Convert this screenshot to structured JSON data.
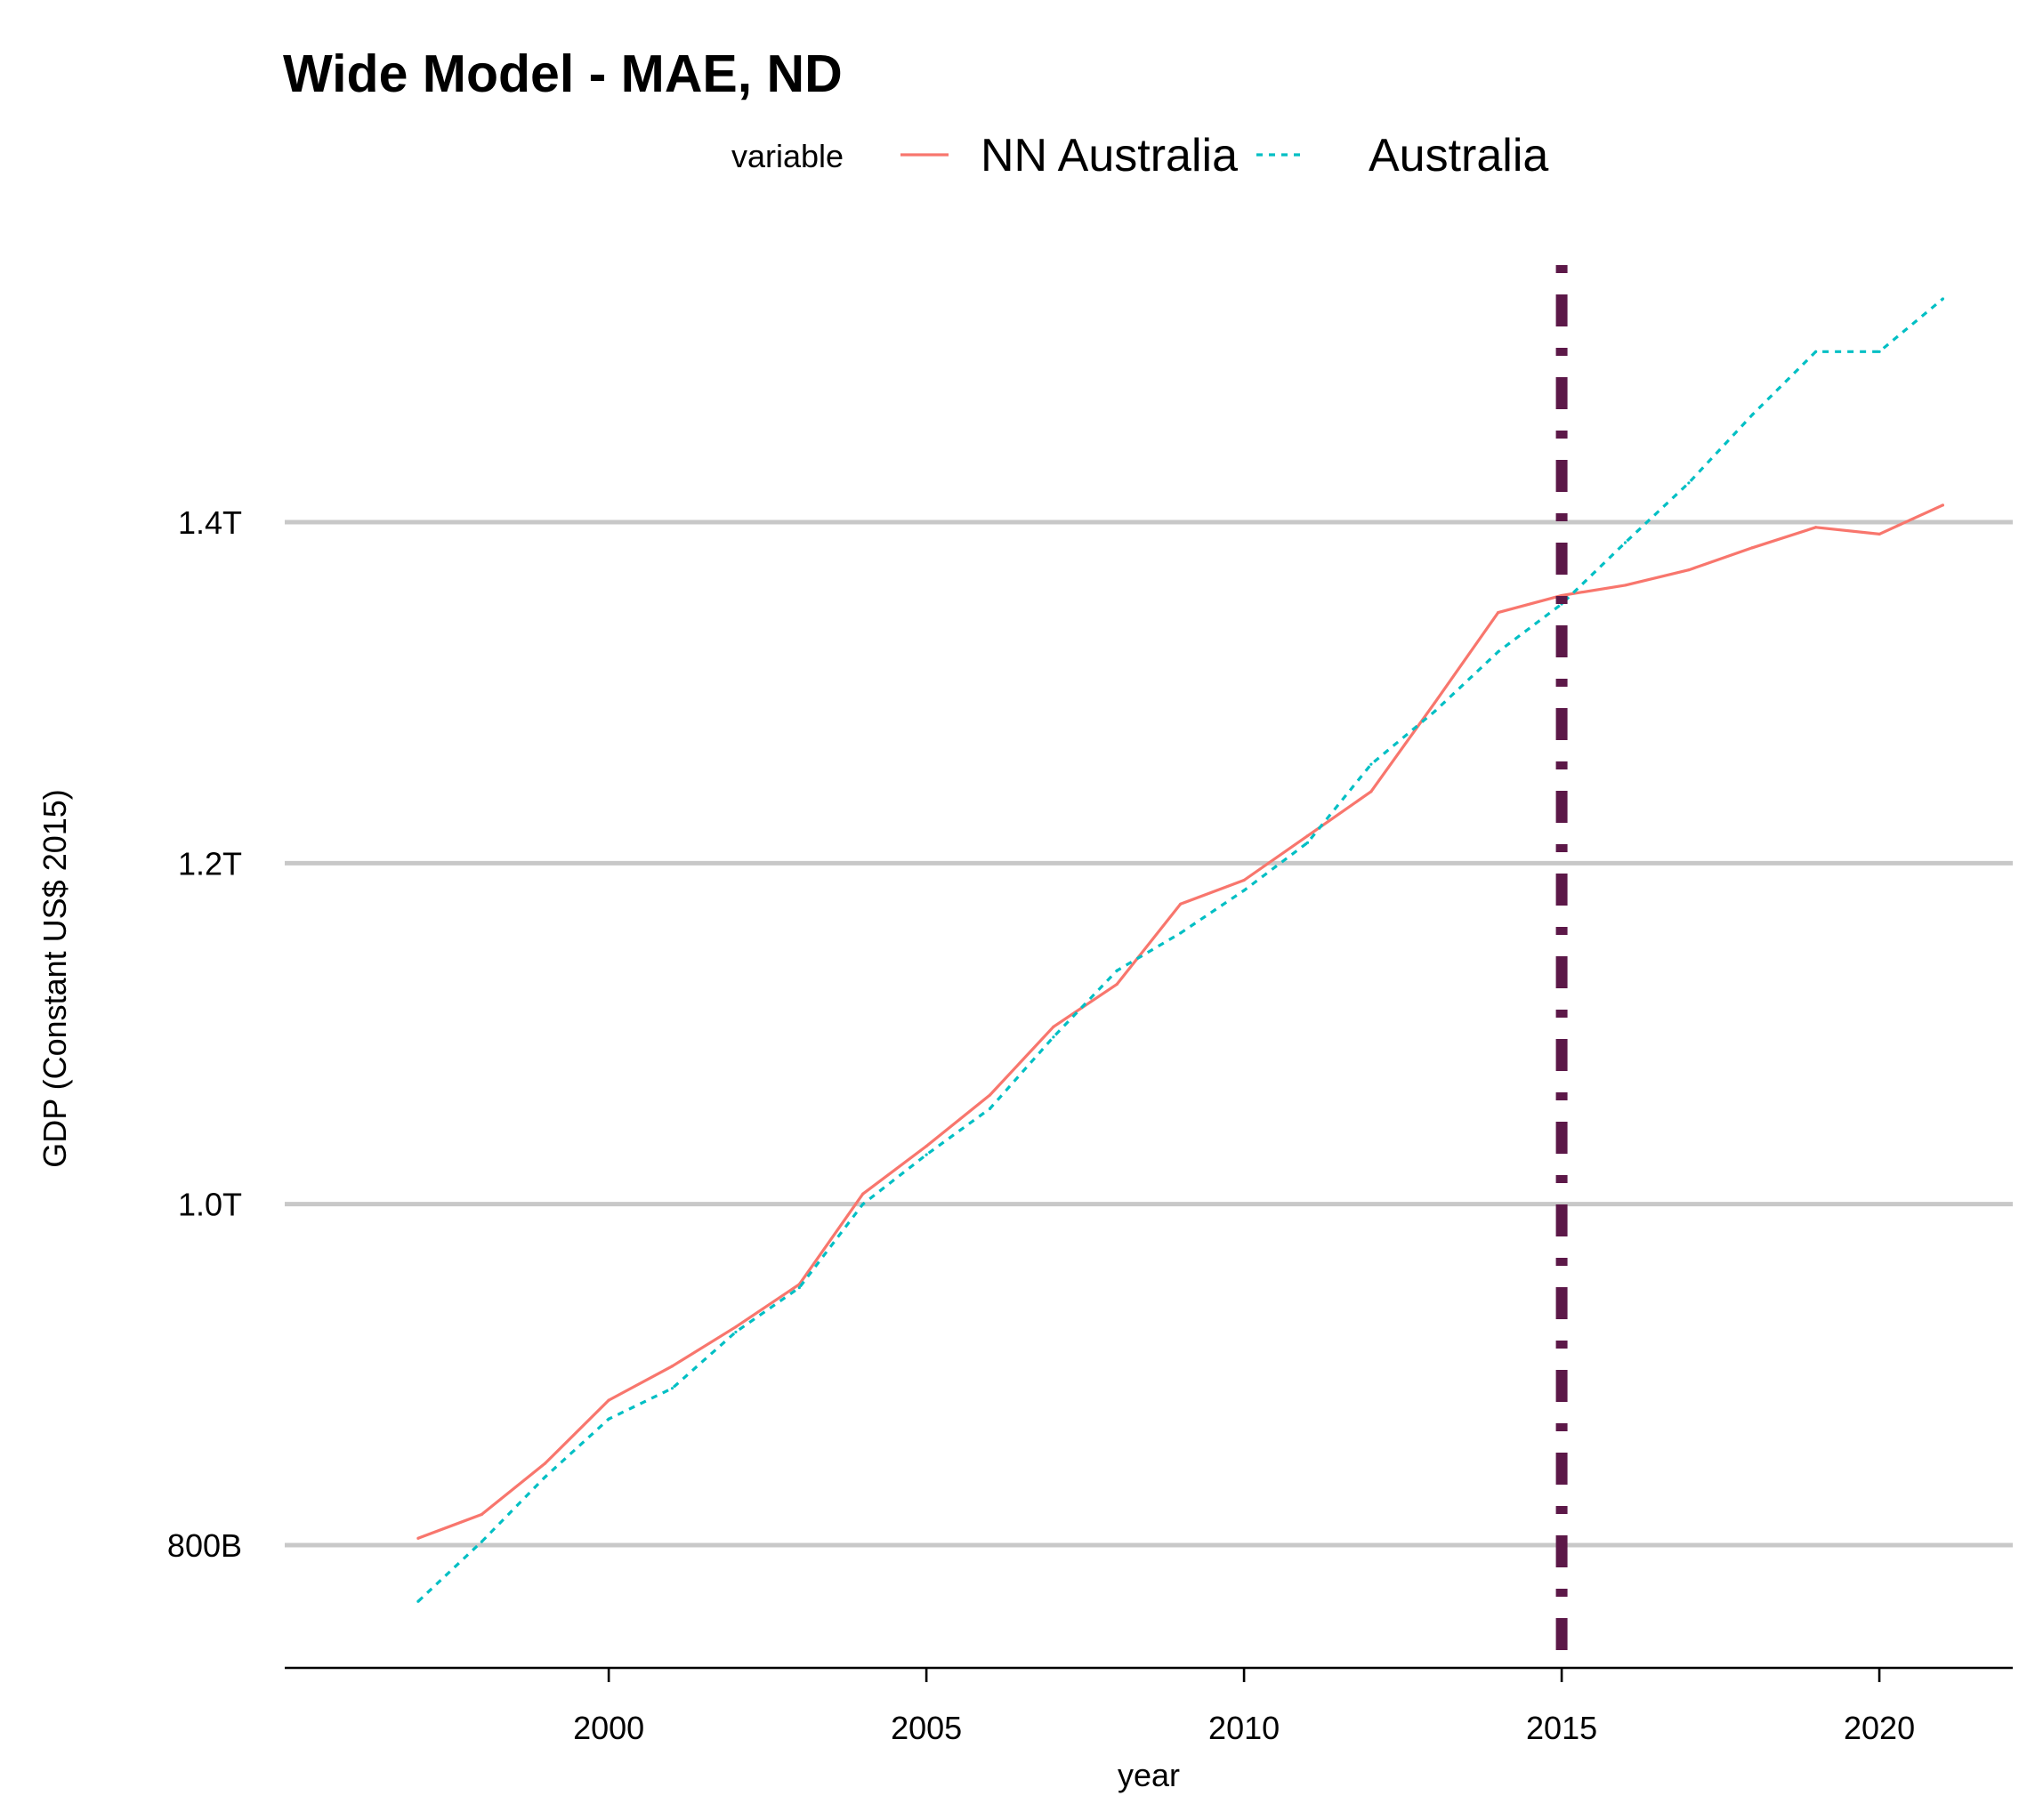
{
  "chart_data": {
    "type": "line",
    "title": "Wide Model - MAE, ND",
    "xlabel": "year",
    "ylabel": "GDP (Constant US$ 2015)",
    "legend": {
      "title": "variable",
      "position": "top"
    },
    "x": [
      1997,
      1998,
      1999,
      2000,
      2001,
      2002,
      2003,
      2004,
      2005,
      2006,
      2007,
      2008,
      2009,
      2010,
      2011,
      2012,
      2013,
      2014,
      2015,
      2016,
      2017,
      2018,
      2019,
      2020,
      2021
    ],
    "series": [
      {
        "name": "NN Australia",
        "color": "#F8766D",
        "dash": "solid",
        "values": [
          804,
          818,
          848,
          885,
          905,
          928,
          953,
          1006,
          1034,
          1064,
          1104,
          1129,
          1176,
          1190,
          1216,
          1242,
          1294,
          1347,
          1357,
          1363,
          1372,
          1385,
          1397,
          1393,
          1410
        ]
      },
      {
        "name": "Australia",
        "color": "#00BFC4",
        "dash": "dotted",
        "values": [
          767,
          802,
          840,
          874,
          892,
          925,
          951,
          1000,
          1029,
          1056,
          1098,
          1137,
          1159,
          1184,
          1212,
          1258,
          1289,
          1324,
          1352,
          1388,
          1423,
          1463,
          1500,
          1500,
          1531
        ]
      }
    ],
    "xticks": [
      2000,
      2005,
      2010,
      2015,
      2020
    ],
    "yticks": [
      {
        "value": 800,
        "label": "800B"
      },
      {
        "value": 1000,
        "label": "1.0T"
      },
      {
        "value": 1200,
        "label": "1.2T"
      },
      {
        "value": 1400,
        "label": "1.4T"
      }
    ],
    "xlim": [
      1994.9,
      2022.1
    ],
    "ylim": [
      728,
      1556
    ],
    "grid": {
      "horizontal": true,
      "vertical": false
    },
    "reference_line": {
      "x": 2015,
      "color": "#5C1848",
      "style": "dotdash"
    }
  }
}
